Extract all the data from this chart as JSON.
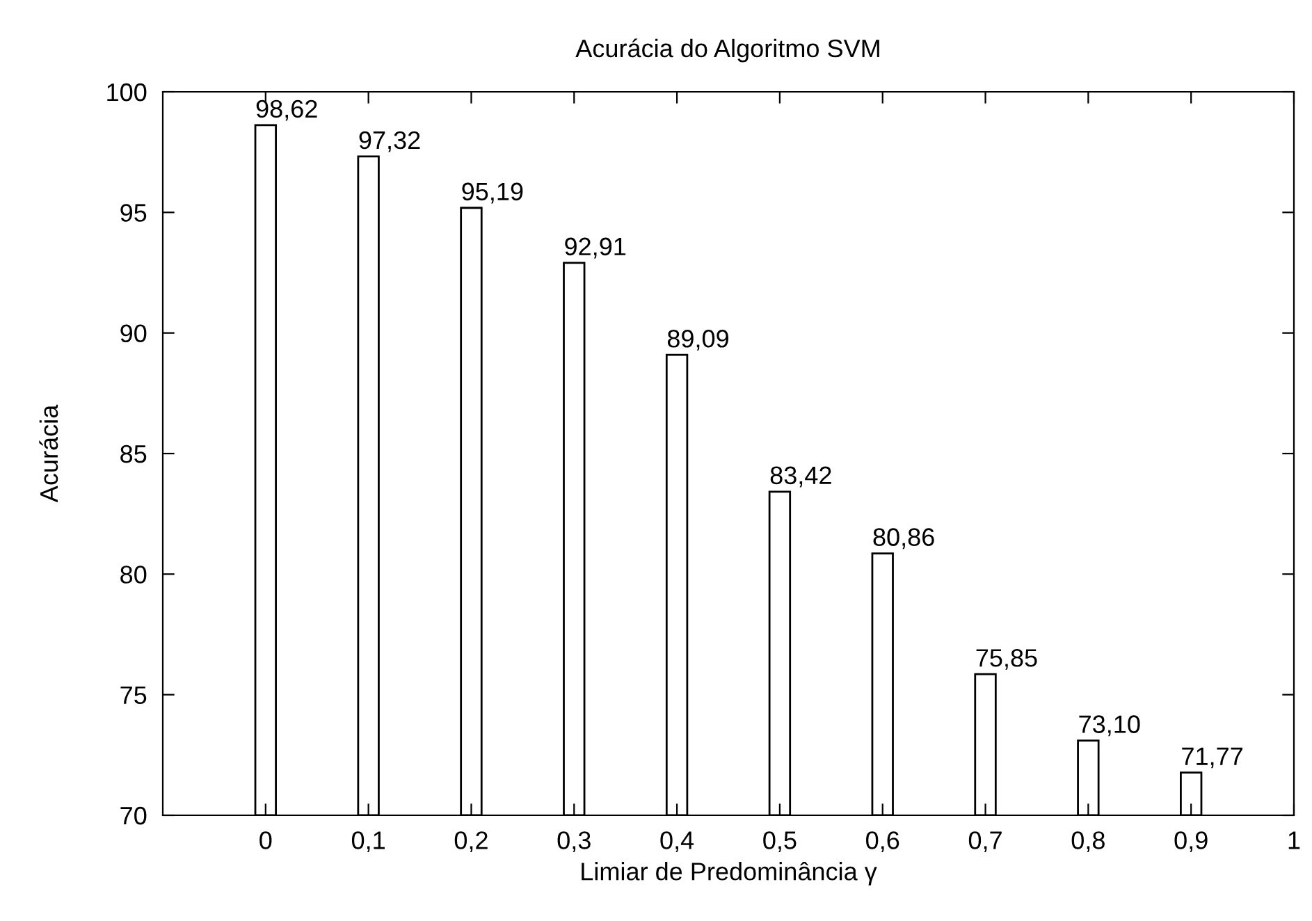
{
  "chart_data": {
    "type": "bar",
    "title": "Acurácia do Algoritmo SVM",
    "xlabel": "Limiar de Predominância γ",
    "ylabel": "Acurácia",
    "x": [
      0,
      0.1,
      0.2,
      0.3,
      0.4,
      0.5,
      0.6,
      0.7,
      0.8,
      0.9
    ],
    "values": [
      98.62,
      97.32,
      95.19,
      92.91,
      89.09,
      83.42,
      80.86,
      75.85,
      73.1,
      71.77
    ],
    "value_labels": [
      "98,62",
      "97,32",
      "95,19",
      "92,91",
      "89,09",
      "83,42",
      "80,86",
      "75,85",
      "73,10",
      "71,77"
    ],
    "color": "#ffffff",
    "xlim": [
      -0.1,
      1
    ],
    "ylim": [
      70,
      100
    ],
    "xticks": [
      0,
      {
        "value": 0.1,
        "label": "0,1"
      },
      {
        "value": 0.2,
        "label": "0,2"
      },
      {
        "value": 0.3,
        "label": "0,3"
      },
      {
        "value": 0.4,
        "label": "0,4"
      },
      {
        "value": 0.5,
        "label": "0,5"
      },
      {
        "value": 0.6,
        "label": "0,6"
      },
      {
        "value": 0.7,
        "label": "0,7"
      },
      {
        "value": 0.8,
        "label": "0,8"
      },
      {
        "value": 0.9,
        "label": "0,9"
      },
      1
    ],
    "yticks": [
      70,
      75,
      80,
      85,
      90,
      95,
      100
    ],
    "grid": false,
    "legend": false
  }
}
